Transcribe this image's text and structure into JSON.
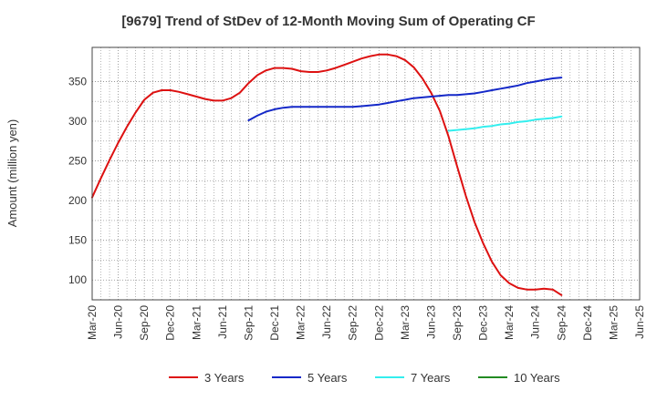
{
  "chart_data": {
    "type": "line",
    "title": "[9679]  Trend of StDev of 12-Month Moving Sum of Operating CF",
    "ylabel": "Amount (million yen)",
    "xlabel": "",
    "ylim": [
      75,
      393
    ],
    "yticks": [
      100,
      150,
      200,
      250,
      300,
      350
    ],
    "x_tick_labels": [
      "Mar-20",
      "Jun-20",
      "Sep-20",
      "Dec-20",
      "Mar-21",
      "Jun-21",
      "Sep-21",
      "Dec-21",
      "Mar-22",
      "Jun-22",
      "Sep-22",
      "Dec-22",
      "Mar-23",
      "Jun-23",
      "Sep-23",
      "Dec-23",
      "Mar-24",
      "Jun-24",
      "Sep-24",
      "Dec-24",
      "Mar-25",
      "Jun-25"
    ],
    "grid": true,
    "legend_position": "bottom",
    "series": [
      {
        "name": "3 Years",
        "color": "#dd1111",
        "values": [
          204,
          228,
          251,
          273,
          293,
          311,
          327,
          336,
          339,
          339,
          337,
          334,
          331,
          328,
          326,
          326,
          329,
          336,
          348,
          358,
          364,
          367,
          367,
          366,
          363,
          362,
          362,
          364,
          367,
          371,
          375,
          379,
          382,
          384,
          384,
          382,
          377,
          368,
          354,
          336,
          313,
          281,
          243,
          206,
          173,
          146,
          123,
          106,
          96,
          90,
          88,
          88,
          89,
          88,
          81
        ]
      },
      {
        "name": "5 Years",
        "color": "#1428c8",
        "values": [
          null,
          null,
          null,
          null,
          null,
          null,
          null,
          null,
          null,
          null,
          null,
          null,
          null,
          null,
          null,
          null,
          null,
          null,
          301,
          307,
          312,
          315,
          317,
          318,
          318,
          318,
          318,
          318,
          318,
          318,
          318,
          319,
          320,
          321,
          323,
          325,
          327,
          329,
          330,
          331,
          332,
          333,
          333,
          334,
          335,
          337,
          339,
          341,
          343,
          345,
          348,
          350,
          352,
          354,
          355
        ]
      },
      {
        "name": "7 Years",
        "color": "#33eeee",
        "values": [
          null,
          null,
          null,
          null,
          null,
          null,
          null,
          null,
          null,
          null,
          null,
          null,
          null,
          null,
          null,
          null,
          null,
          null,
          null,
          null,
          null,
          null,
          null,
          null,
          null,
          null,
          null,
          null,
          null,
          null,
          null,
          null,
          null,
          null,
          null,
          null,
          null,
          null,
          null,
          null,
          null,
          288,
          289,
          290,
          291,
          293,
          294,
          296,
          297,
          299,
          300,
          302,
          303,
          304,
          306
        ]
      },
      {
        "name": "10 Years",
        "color": "#228b22",
        "values": []
      }
    ]
  }
}
